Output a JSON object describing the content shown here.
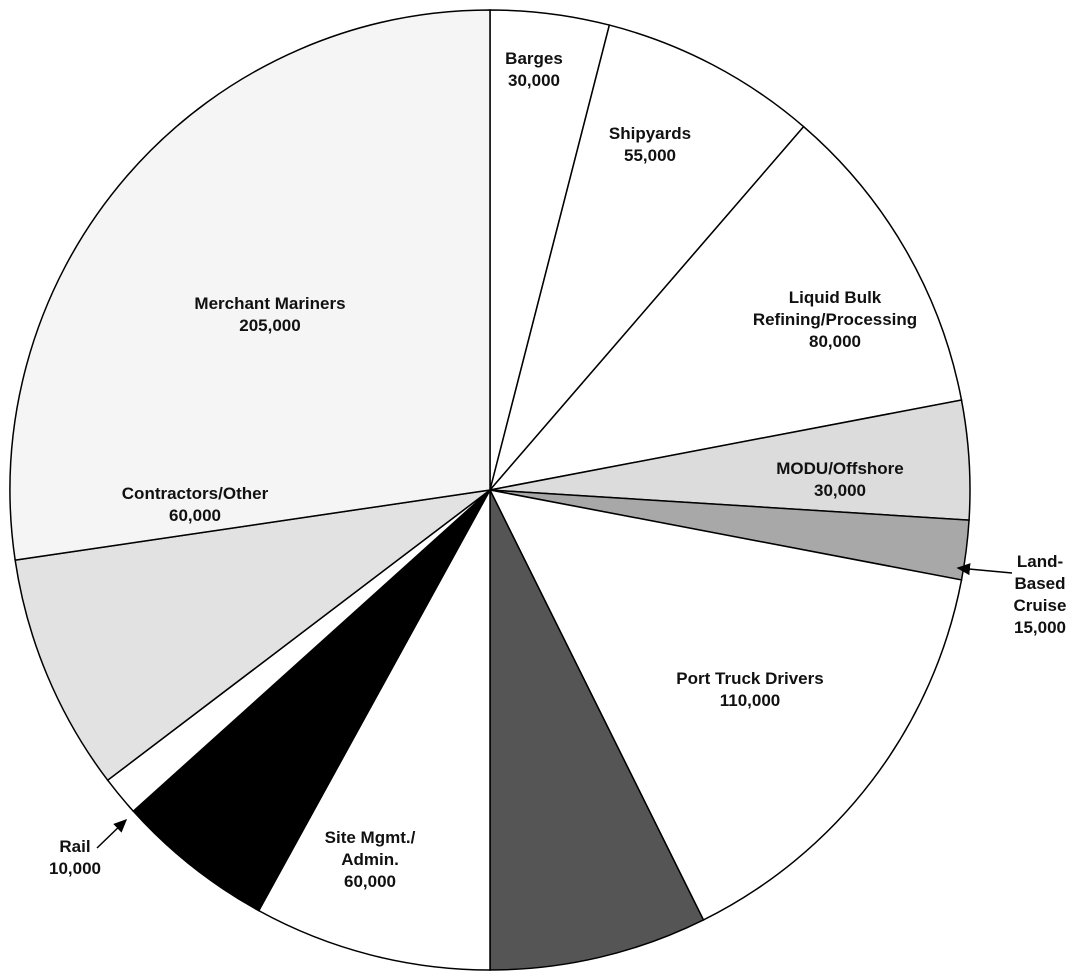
{
  "chart_data": {
    "type": "pie",
    "categories": [
      "Barges",
      "Shipyards",
      "Liquid Bulk Refining/Processing",
      "MODU/Offshore",
      "Land-Based Cruise",
      "Port Truck Drivers",
      null,
      "Site Mgmt./ Admin.",
      null,
      "Rail",
      "Contractors/Other",
      "Merchant Mariners"
    ],
    "values": [
      30000,
      55000,
      80000,
      30000,
      15000,
      110000,
      55000,
      60000,
      40000,
      10000,
      60000,
      205000
    ],
    "value_labels": [
      "30,000",
      "55,000",
      "80,000",
      "30,000",
      "15,000",
      "110,000",
      null,
      "60,000",
      null,
      "10,000",
      "60,000",
      "205,000"
    ],
    "colors": [
      "#ffffff",
      "#ffffff",
      "#ffffff",
      "#dcdcdc",
      "#a8a8a8",
      "#ffffff",
      "#555555",
      "#ffffff",
      "#000000",
      "#ffffff",
      "#e2e2e2",
      "#f5f5f5"
    ]
  }
}
